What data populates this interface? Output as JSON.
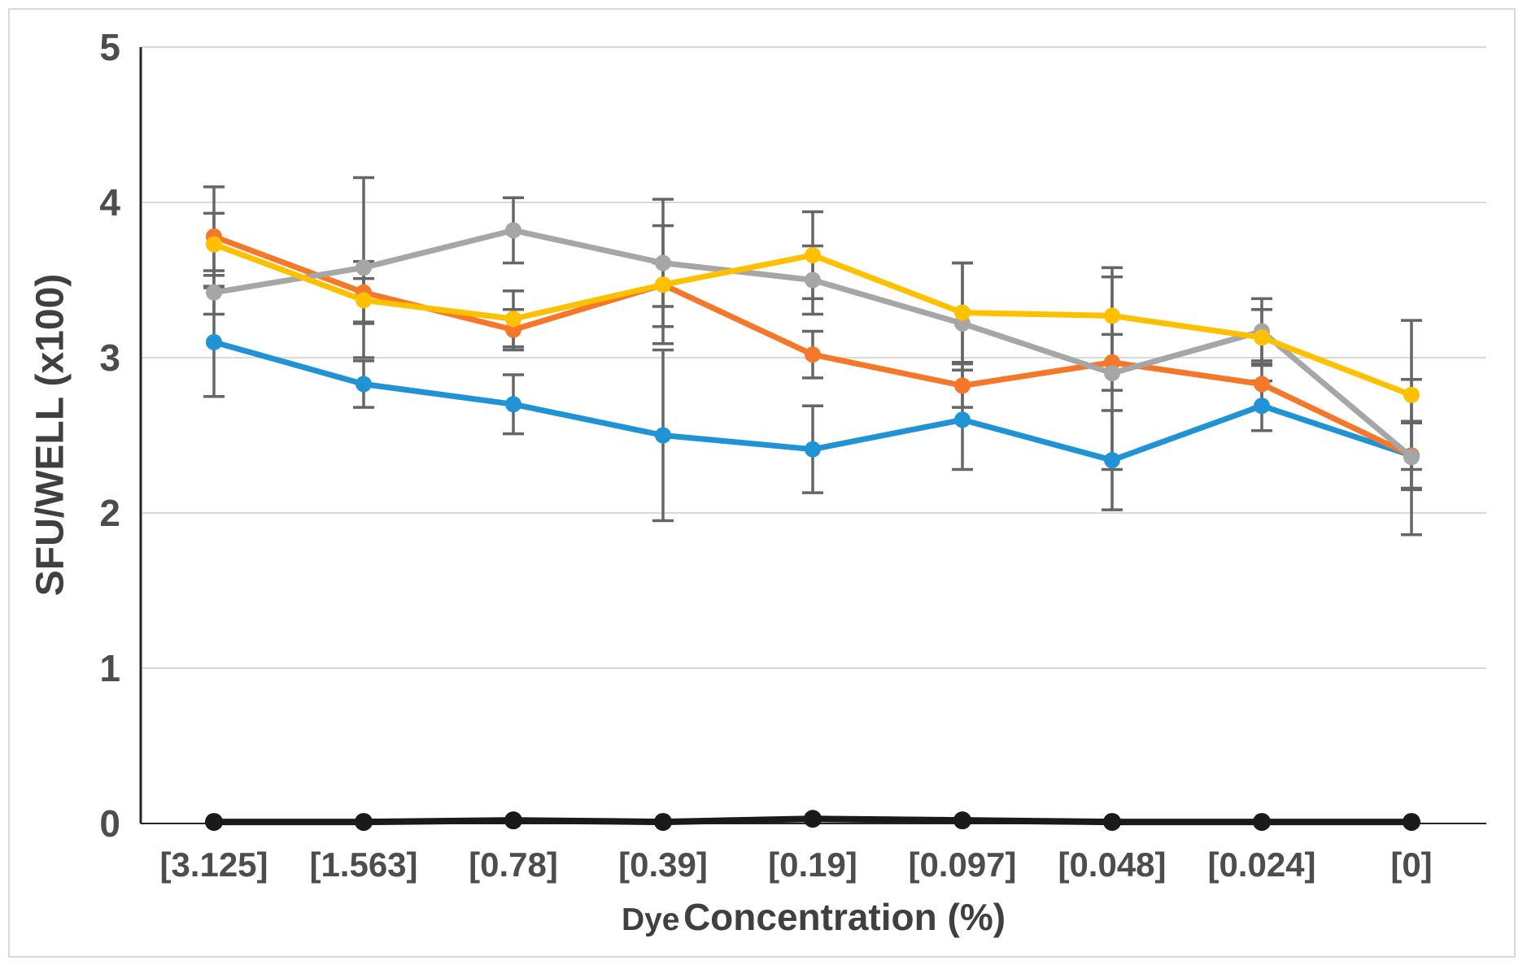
{
  "chart_data": {
    "type": "line",
    "title": "",
    "xlabel": "Dye Concentration (%)",
    "xlabel_parts": [
      "Dye",
      "Concentration (%)"
    ],
    "ylabel": "SFU/WELL (x100)",
    "ylim": [
      0,
      5
    ],
    "yticks": [
      "0",
      "1",
      "2",
      "3",
      "4",
      "5"
    ],
    "grid": "horizontal",
    "legend": "none",
    "error_bars": true,
    "categories": [
      "[3.125]",
      "[1.563]",
      "[0.78]",
      "[0.39]",
      "[0.19]",
      "[0.097]",
      "[0.048]",
      "[0.024]",
      "[0]"
    ],
    "series": [
      {
        "name": "blue-series",
        "color": "#2093d5",
        "values": [
          3.1,
          2.83,
          2.7,
          2.5,
          2.41,
          2.6,
          2.34,
          2.69,
          2.37
        ],
        "errors": [
          0.35,
          0.15,
          0.19,
          0.55,
          0.28,
          0.32,
          0.32,
          0.16,
          0.22
        ]
      },
      {
        "name": "orange-series",
        "color": "#f5782a",
        "values": [
          3.78,
          3.42,
          3.18,
          3.47,
          3.02,
          2.82,
          2.97,
          2.83,
          2.37
        ],
        "errors": [
          0.32,
          0.2,
          0.13,
          0.14,
          0.15,
          0.14,
          0.18,
          0.15,
          0.21
        ]
      },
      {
        "name": "gray-series",
        "color": "#a6a6a6",
        "values": [
          3.42,
          3.58,
          3.82,
          3.61,
          3.5,
          3.22,
          2.9,
          3.17,
          2.36
        ],
        "errors": [
          0.14,
          0.58,
          0.21,
          0.41,
          0.22,
          0.39,
          0.62,
          0.21,
          0.5
        ]
      },
      {
        "name": "yellow-series",
        "color": "#ffc000",
        "values": [
          3.73,
          3.37,
          3.25,
          3.47,
          3.66,
          3.29,
          3.27,
          3.13,
          2.76
        ],
        "errors": [
          0.2,
          0.14,
          0.18,
          0.38,
          0.28,
          0.32,
          0.31,
          0.18,
          0.48
        ]
      },
      {
        "name": "black-series",
        "color": "#1a1a1a",
        "values": [
          0.01,
          0.01,
          0.02,
          0.01,
          0.03,
          0.02,
          0.01,
          0.01,
          0.01
        ],
        "errors": [
          0,
          0,
          0,
          0,
          0,
          0,
          0,
          0,
          0
        ]
      }
    ],
    "colors": {
      "gridline": "#d9d9d9",
      "axis": "#262626",
      "error_bar": "#666666",
      "tick_text": "#4d4d4d",
      "frame_border": "#d9d9d9"
    }
  }
}
